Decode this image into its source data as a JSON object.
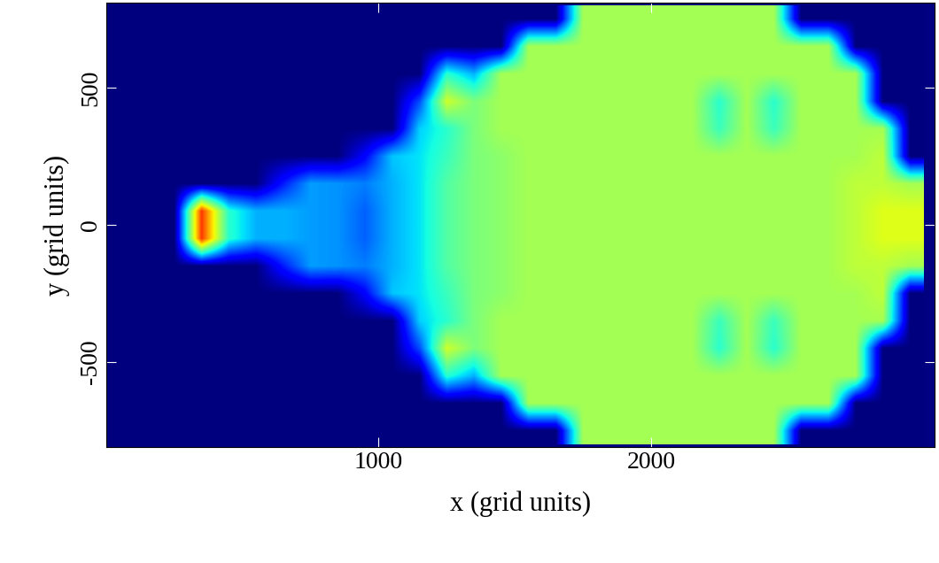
{
  "chart_data": {
    "type": "heatmap",
    "xlabel": "x (grid units)",
    "ylabel": "y (grid units)",
    "xlim": [
      0,
      3040
    ],
    "ylim": [
      -810,
      810
    ],
    "xticks": [
      1000,
      2000
    ],
    "yticks": [
      -500,
      0,
      500
    ],
    "clim": [
      0,
      1
    ],
    "x": [
      50,
      150,
      250,
      350,
      450,
      550,
      650,
      750,
      850,
      950,
      1050,
      1150,
      1250,
      1350,
      1450,
      1550,
      1650,
      1750,
      1850,
      1950,
      2050,
      2150,
      2250,
      2350,
      2450,
      2550,
      2650,
      2750,
      2850,
      2950
    ],
    "y": [
      750,
      650,
      550,
      450,
      350,
      250,
      150,
      50,
      -50,
      -150,
      -250,
      -350,
      -450,
      -550,
      -650,
      -750
    ],
    "cells": [
      [
        0,
        0,
        0,
        0,
        0,
        0,
        0,
        0,
        0,
        0,
        0,
        0,
        0,
        0,
        0,
        0,
        0,
        0.55,
        0.55,
        0.55,
        0.55,
        0.55,
        0.55,
        0.55,
        0.55,
        0,
        0,
        0,
        0,
        0
      ],
      [
        0,
        0,
        0,
        0,
        0,
        0,
        0,
        0,
        0,
        0,
        0,
        0,
        0,
        0,
        0,
        0.55,
        0.55,
        0.55,
        0.55,
        0.55,
        0.55,
        0.55,
        0.55,
        0.55,
        0.55,
        0.55,
        0.55,
        0,
        0,
        0
      ],
      [
        0,
        0,
        0,
        0,
        0,
        0,
        0,
        0,
        0,
        0,
        0,
        0,
        0.4,
        0.3,
        0.55,
        0.55,
        0.55,
        0.55,
        0.55,
        0.55,
        0.55,
        0.55,
        0.55,
        0.55,
        0.55,
        0.55,
        0.55,
        0.55,
        0,
        0
      ],
      [
        0,
        0,
        0,
        0,
        0,
        0,
        0,
        0,
        0,
        0,
        0,
        0.2,
        0.6,
        0.5,
        0.55,
        0.55,
        0.55,
        0.55,
        0.55,
        0.55,
        0.55,
        0.55,
        0.4,
        0.55,
        0.4,
        0.55,
        0.55,
        0.55,
        0,
        0
      ],
      [
        0,
        0,
        0,
        0,
        0,
        0,
        0,
        0,
        0,
        0,
        0,
        0.33,
        0.4,
        0.5,
        0.55,
        0.55,
        0.55,
        0.55,
        0.55,
        0.55,
        0.55,
        0.55,
        0.42,
        0.55,
        0.42,
        0.55,
        0.55,
        0.55,
        0.55,
        0
      ],
      [
        0,
        0,
        0,
        0,
        0,
        0,
        0,
        0,
        0,
        0.12,
        0.32,
        0.35,
        0.42,
        0.5,
        0.52,
        0.55,
        0.55,
        0.55,
        0.55,
        0.55,
        0.55,
        0.55,
        0.55,
        0.55,
        0.55,
        0.55,
        0.55,
        0.55,
        0.58,
        0
      ],
      [
        0,
        0,
        0,
        0,
        0,
        0,
        0.15,
        0.28,
        0.27,
        0.25,
        0.3,
        0.35,
        0.45,
        0.5,
        0.52,
        0.55,
        0.55,
        0.55,
        0.55,
        0.55,
        0.55,
        0.55,
        0.55,
        0.55,
        0.55,
        0.55,
        0.55,
        0.58,
        0.58,
        0.55
      ],
      [
        0,
        0,
        0,
        0.85,
        0.4,
        0.3,
        0.3,
        0.28,
        0.27,
        0.22,
        0.3,
        0.35,
        0.45,
        0.5,
        0.52,
        0.55,
        0.55,
        0.55,
        0.55,
        0.55,
        0.55,
        0.55,
        0.55,
        0.55,
        0.55,
        0.55,
        0.55,
        0.58,
        0.62,
        0.62
      ],
      [
        0,
        0,
        0,
        0.85,
        0.4,
        0.3,
        0.3,
        0.28,
        0.27,
        0.22,
        0.3,
        0.35,
        0.45,
        0.5,
        0.52,
        0.55,
        0.55,
        0.55,
        0.55,
        0.55,
        0.55,
        0.55,
        0.55,
        0.55,
        0.55,
        0.55,
        0.55,
        0.58,
        0.62,
        0.62
      ],
      [
        0,
        0,
        0,
        0,
        0,
        0,
        0.15,
        0.28,
        0.27,
        0.25,
        0.3,
        0.35,
        0.45,
        0.5,
        0.52,
        0.55,
        0.55,
        0.55,
        0.55,
        0.55,
        0.55,
        0.55,
        0.55,
        0.55,
        0.55,
        0.55,
        0.55,
        0.58,
        0.58,
        0.55
      ],
      [
        0,
        0,
        0,
        0,
        0,
        0,
        0,
        0,
        0,
        0.12,
        0.32,
        0.35,
        0.42,
        0.5,
        0.52,
        0.55,
        0.55,
        0.55,
        0.55,
        0.55,
        0.55,
        0.55,
        0.55,
        0.55,
        0.55,
        0.55,
        0.55,
        0.55,
        0.58,
        0
      ],
      [
        0,
        0,
        0,
        0,
        0,
        0,
        0,
        0,
        0,
        0,
        0,
        0.33,
        0.4,
        0.5,
        0.55,
        0.55,
        0.55,
        0.55,
        0.55,
        0.55,
        0.55,
        0.55,
        0.42,
        0.55,
        0.42,
        0.55,
        0.55,
        0.55,
        0.55,
        0
      ],
      [
        0,
        0,
        0,
        0,
        0,
        0,
        0,
        0,
        0,
        0,
        0,
        0.2,
        0.6,
        0.5,
        0.55,
        0.55,
        0.55,
        0.55,
        0.55,
        0.55,
        0.55,
        0.55,
        0.4,
        0.55,
        0.4,
        0.55,
        0.55,
        0.55,
        0,
        0
      ],
      [
        0,
        0,
        0,
        0,
        0,
        0,
        0,
        0,
        0,
        0,
        0,
        0,
        0.4,
        0.3,
        0.55,
        0.55,
        0.55,
        0.55,
        0.55,
        0.55,
        0.55,
        0.55,
        0.55,
        0.55,
        0.55,
        0.55,
        0.55,
        0.55,
        0,
        0
      ],
      [
        0,
        0,
        0,
        0,
        0,
        0,
        0,
        0,
        0,
        0,
        0,
        0,
        0,
        0,
        0,
        0.55,
        0.55,
        0.55,
        0.55,
        0.55,
        0.55,
        0.55,
        0.55,
        0.55,
        0.55,
        0.55,
        0.55,
        0,
        0,
        0
      ],
      [
        0,
        0,
        0,
        0,
        0,
        0,
        0,
        0,
        0,
        0,
        0,
        0,
        0,
        0,
        0,
        0,
        0,
        0.55,
        0.55,
        0.55,
        0.55,
        0.55,
        0.55,
        0.55,
        0.55,
        0,
        0,
        0,
        0,
        0
      ]
    ]
  }
}
